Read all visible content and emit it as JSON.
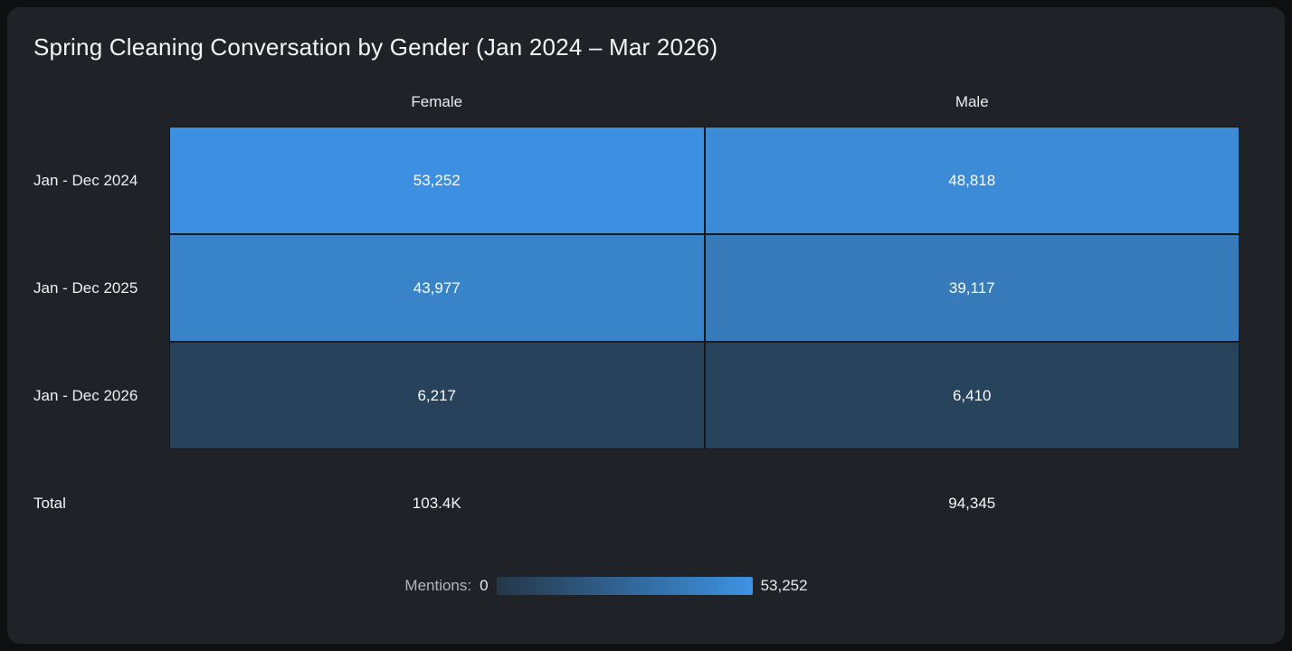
{
  "title": "Spring Cleaning Conversation by Gender (Jan 2024 – Mar 2026)",
  "heatmap": {
    "columns": [
      "Female",
      "Male"
    ],
    "rows": [
      {
        "label": "Jan - Dec 2024",
        "cells": [
          {
            "column": "Female",
            "value": "53,252",
            "color": "#3d90e1"
          },
          {
            "column": "Male",
            "value": "48,818",
            "color": "#3b8bd7"
          }
        ]
      },
      {
        "label": "Jan - Dec 2025",
        "cells": [
          {
            "column": "Female",
            "value": "43,977",
            "color": "#3983c9"
          },
          {
            "column": "Male",
            "value": "39,117",
            "color": "#377bba"
          }
        ]
      },
      {
        "label": "Jan - Dec 2026",
        "cells": [
          {
            "column": "Female",
            "value": "6,217",
            "color": "#28425b"
          },
          {
            "column": "Male",
            "value": "6,410",
            "color": "#28435c"
          }
        ]
      }
    ],
    "total": {
      "label": "Total",
      "values": [
        "103.4K",
        "94,345"
      ]
    }
  },
  "legend": {
    "label": "Mentions:",
    "min": "0",
    "max": "53,252",
    "color_low": "#253748",
    "color_high": "#3d93e4"
  },
  "chart_data": {
    "type": "heatmap",
    "title": "Spring Cleaning Conversation by Gender (Jan 2024 – Mar 2026)",
    "columns": [
      "Female",
      "Male"
    ],
    "rows": [
      "Jan - Dec 2024",
      "Jan - Dec 2025",
      "Jan - Dec 2026"
    ],
    "values": [
      [
        53252,
        48818
      ],
      [
        43977,
        39117
      ],
      [
        6217,
        6410
      ]
    ],
    "totals_display": [
      "103.4K",
      "94,345"
    ],
    "legend_label": "Mentions:",
    "color_scale": {
      "min": 0,
      "max": 53252,
      "low": "#253748",
      "high": "#3d93e4"
    },
    "grid": "off",
    "legend_position": "bottom-center"
  }
}
